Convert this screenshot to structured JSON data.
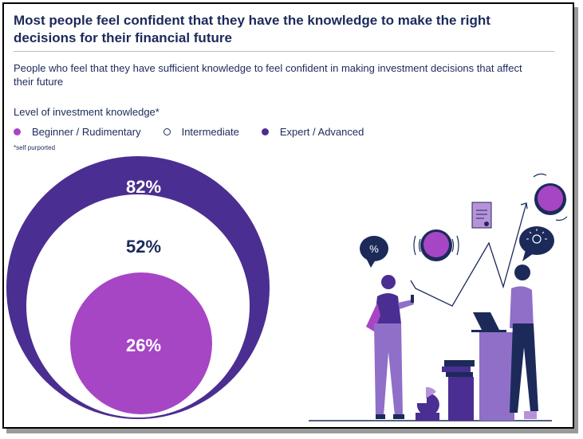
{
  "title": "Most people feel confident that they have the knowledge to make the right decisions for their financial future",
  "subtitle": "People who feel that they have sufficient knowledge to feel confident in making investment decisions that affect their future",
  "footnote": "*self purported",
  "chart_data": {
    "type": "nested-circle",
    "legend_title": "Level of investment knowledge*",
    "legend_placement": "top-left",
    "series": [
      {
        "name": "Expert / Advanced",
        "value": 82,
        "label": "82%",
        "color": "#4b2e91"
      },
      {
        "name": "Intermediate",
        "value": 52,
        "label": "52%",
        "color": "#ffffff"
      },
      {
        "name": "Beginner / Rudimentary",
        "value": 26,
        "label": "26%",
        "color": "#a646c4"
      }
    ]
  },
  "illustration": {
    "percent_symbol": "%",
    "icons": [
      "percent-speech-bubble-icon",
      "coin-icon",
      "document-icon",
      "lightbulb-speech-bubble-icon",
      "laptop-icon",
      "books-icon",
      "pie-chart-icon"
    ]
  }
}
